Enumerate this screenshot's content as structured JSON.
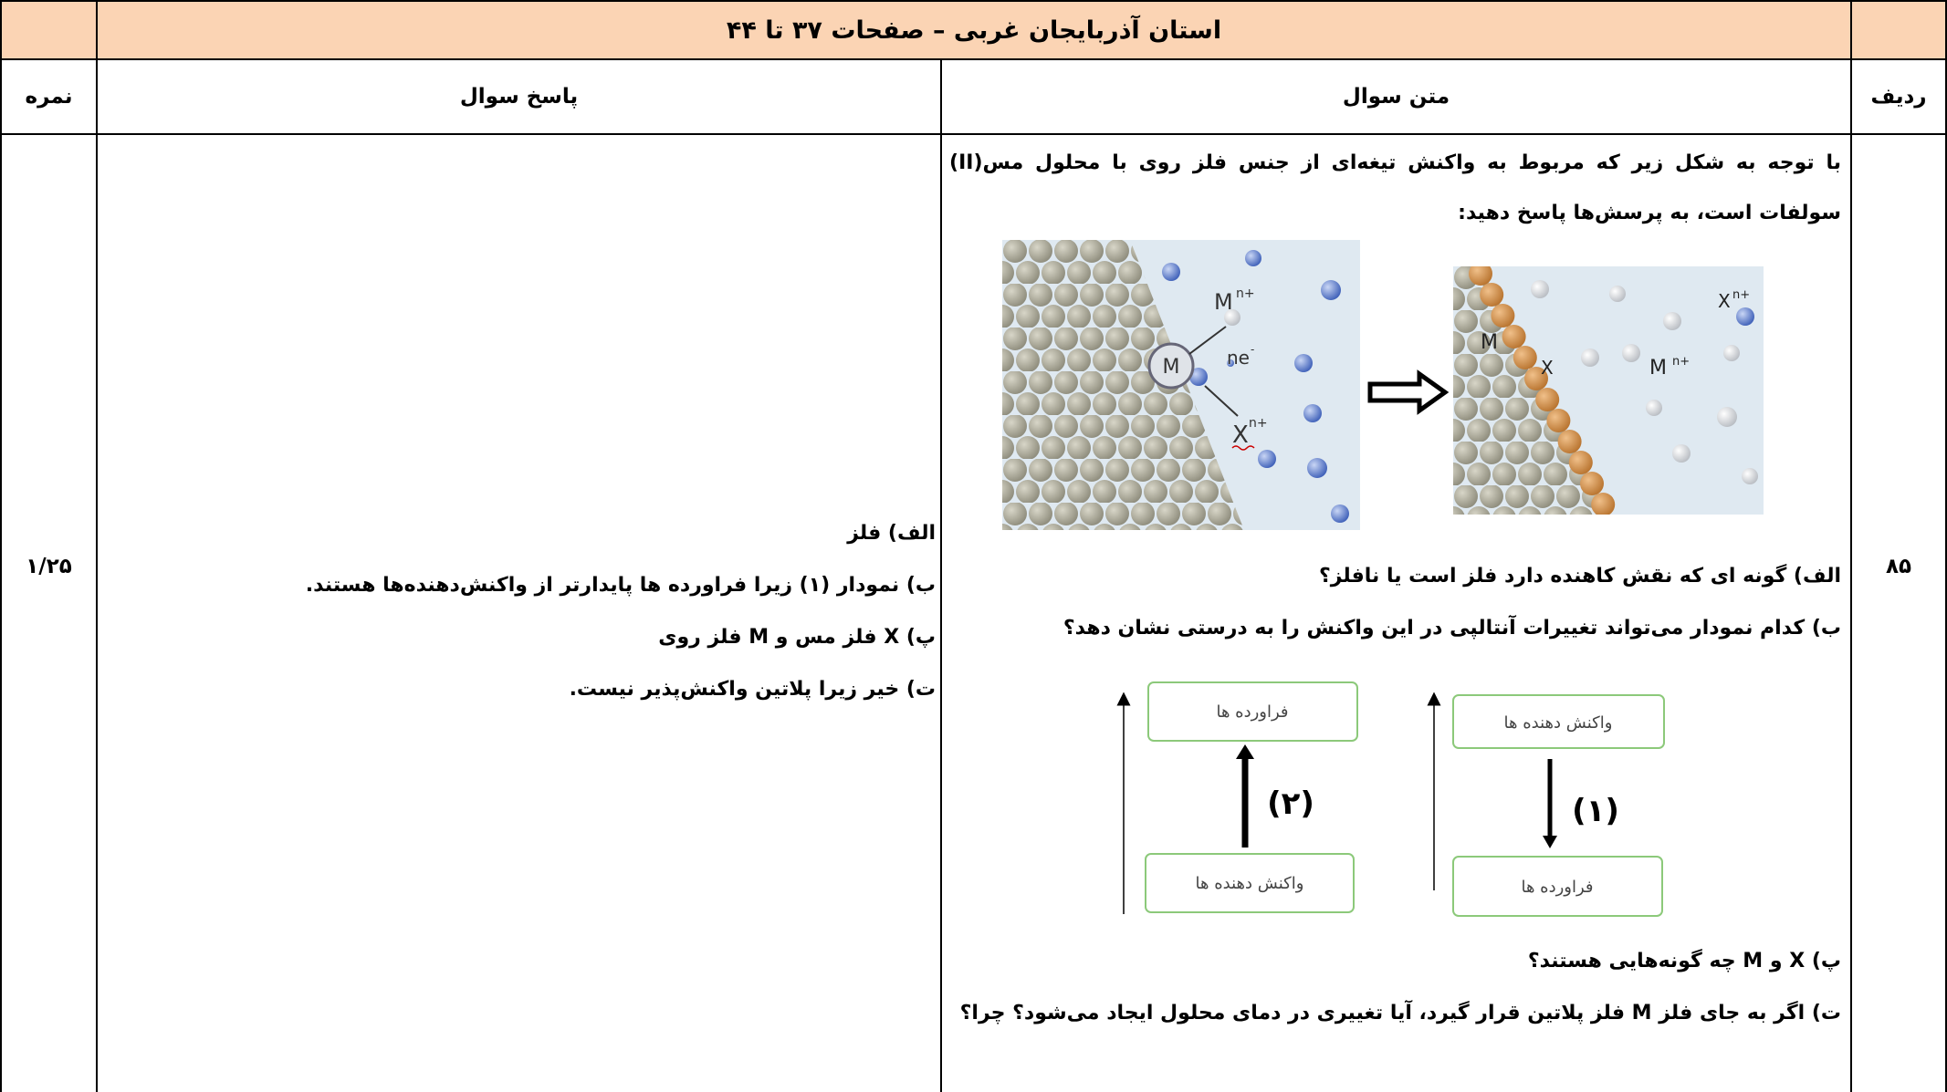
{
  "header": {
    "title": "استان آذربایجان غربی – صفحات ۳۷ تا ۴۴"
  },
  "table": {
    "columns": {
      "score": "نمره",
      "answer": "پاسخ سوال",
      "question": "متن سوال",
      "row": "ردیف"
    },
    "row": {
      "number": "۸۵",
      "score": "۱/۲۵",
      "question": {
        "intro": "با توجه به شکل زیر که مربوط به واکنش تیغه‌ای از جنس فلز روی با محلول مس(II) سولفات است، به پرسش‌ها پاسخ دهید:",
        "figure_1": {
          "left": {
            "metal_atom": "M",
            "metal_ion": "M",
            "ion_charge": "n+",
            "electrons": "ne",
            "electron_charge": "-",
            "cation": "X",
            "cation_charge": "n+"
          },
          "right": {
            "metal": "M",
            "deposit": "X",
            "metal_ion": "M",
            "ion_charge": "n+",
            "cation": "X",
            "cation_charge": "n+"
          }
        },
        "parts_1": [
          "الف) گونه ای که نقش کاهنده دارد فلز است یا نافلز؟",
          "ب) کدام نمودار می‌تواند تغییرات آنتالپی در این واکنش را به درستی نشان دهد؟"
        ],
        "figure_2": {
          "diagram_2": {
            "top": "فراورده ها",
            "bottom": "واکنش دهنده ها",
            "label": "(۲)"
          },
          "diagram_1": {
            "top": "واکنش دهنده ها",
            "bottom": "فراورده ها",
            "label": "(۱)"
          }
        },
        "parts_2": [
          "پ) X و M چه گونه‌هایی هستند؟",
          "ت) اگر به جای فلز M فلز پلاتین قرار گیرد، آیا تغییری در دمای محلول ایجاد می‌شود؟ چرا؟"
        ]
      },
      "answer": [
        "الف) فلز",
        "ب) نمودار (۱) زیرا فراورده ها پایدارتر از واکنش‌دهنده‌ها هستند.",
        "پ) X فلز مس و M فلز روی",
        "ت) خیر زیرا پلاتین واکنش‌پذیر نیست."
      ]
    }
  }
}
